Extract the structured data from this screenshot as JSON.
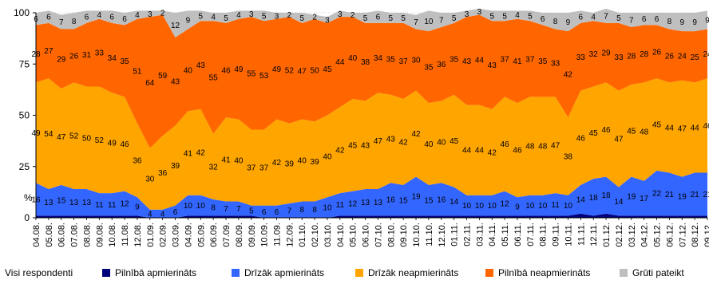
{
  "chart_data": {
    "type": "area",
    "stacked": true,
    "title": "",
    "xlabel": "",
    "ylabel": "%",
    "ylim": [
      0,
      100
    ],
    "yticks": [
      0,
      25,
      50,
      75,
      100
    ],
    "grid": true,
    "x": [
      "04.08.",
      "05.08.",
      "06.08.",
      "07.08.",
      "08.08.",
      "09.08.",
      "10.08.",
      "11.08.",
      "12.08.",
      "01.09.",
      "02.09.",
      "03.09.",
      "04.09.",
      "05.09.",
      "06.09.",
      "07.09.",
      "08.09.",
      "09.09.",
      "10.09.",
      "11.09.",
      "12.09.",
      "01.10.",
      "02.10.",
      "03.10.",
      "04.10.",
      "05.10.",
      "06.10.",
      "07.10.",
      "08.10.",
      "09.10.",
      "10.10.",
      "11.10.",
      "12.10.",
      "01.11.",
      "02.11.",
      "03.11.",
      "04.11.",
      "05.11.",
      "06.11.",
      "07.11.",
      "08.11.",
      "09.11.",
      "10.11.",
      "11.11.",
      "12.11.",
      "01.12.",
      "02.12.",
      "03.12.",
      "04.12.",
      "05.12.",
      "06.12.",
      "07.12.",
      "08.12.",
      "09.12."
    ],
    "series": [
      {
        "name": "Pilnībā apmierināts",
        "color": "#00007f",
        "values": [
          1,
          1,
          1,
          1,
          1,
          1,
          1,
          1,
          1,
          0,
          0,
          0,
          1,
          1,
          1,
          1,
          1,
          1,
          0,
          0,
          0,
          0,
          0,
          0,
          1,
          1,
          1,
          1,
          1,
          1,
          1,
          1,
          1,
          1,
          1,
          1,
          1,
          1,
          1,
          1,
          1,
          1,
          1,
          2,
          1,
          2,
          1,
          1,
          1,
          1,
          1,
          1,
          1,
          1
        ]
      },
      {
        "name": "Drīzāk apmierināts",
        "color": "#3366ff",
        "values": [
          16,
          13,
          15,
          13,
          13,
          11,
          11,
          12,
          9,
          4,
          4,
          6,
          10,
          10,
          8,
          7,
          7,
          5,
          6,
          6,
          7,
          8,
          8,
          10,
          11,
          12,
          13,
          13,
          16,
          15,
          19,
          15,
          16,
          14,
          10,
          10,
          10,
          12,
          9,
          10,
          10,
          11,
          10,
          14,
          18,
          18,
          14,
          19,
          17,
          22,
          21,
          19,
          21,
          21
        ]
      },
      {
        "name": "Drīzāk neapmierināts",
        "color": "#ffa500",
        "values": [
          49,
          54,
          47,
          52,
          50,
          52,
          49,
          46,
          36,
          30,
          36,
          39,
          41,
          42,
          32,
          41,
          40,
          37,
          37,
          42,
          39,
          40,
          39,
          40,
          42,
          45,
          43,
          47,
          43,
          42,
          42,
          40,
          40,
          45,
          44,
          44,
          42,
          46,
          46,
          48,
          48,
          47,
          38,
          46,
          45,
          46,
          47,
          45,
          48,
          45,
          44,
          47,
          44,
          46
        ]
      },
      {
        "name": "Pilnībā neapmierināts",
        "color": "#ff6600",
        "values": [
          28,
          27,
          29,
          26,
          31,
          33,
          34,
          35,
          51,
          64,
          59,
          43,
          40,
          43,
          55,
          46,
          49,
          55,
          53,
          49,
          52,
          47,
          50,
          45,
          44,
          40,
          38,
          34,
          35,
          37,
          30,
          35,
          36,
          35,
          43,
          44,
          43,
          37,
          41,
          37,
          35,
          33,
          42,
          33,
          32,
          29,
          33,
          28,
          28,
          26,
          26,
          24,
          25,
          24
        ]
      },
      {
        "name": "Grūti pateikt",
        "color": "#bfbfbf",
        "values": [
          6,
          6,
          7,
          8,
          6,
          4,
          6,
          6,
          4,
          3,
          2,
          12,
          9,
          5,
          4,
          5,
          4,
          3,
          5,
          3,
          2,
          5,
          2,
          3,
          3,
          2,
          5,
          6,
          5,
          5,
          7,
          10,
          7,
          5,
          3,
          3,
          5,
          5,
          4,
          5,
          6,
          8,
          9,
          6,
          4,
          7,
          5,
          7,
          6,
          6,
          8,
          9,
          9,
          9
        ]
      }
    ],
    "label_rows": [
      {
        "series": 1,
        "labels": [
          "16",
          "13",
          "15",
          "13",
          "13",
          "11",
          "11",
          "12",
          "9",
          "4",
          "4",
          "6",
          "10",
          "10",
          "8",
          "7",
          "7",
          "5",
          "6",
          "6",
          "7",
          "8",
          "8",
          "10",
          "11",
          "12",
          "13",
          "13",
          "16",
          "15",
          "19",
          "15",
          "16",
          "14",
          "10",
          "10",
          "10",
          "12",
          "9",
          "10",
          "10",
          "11",
          "10",
          "14",
          "18",
          "18",
          "14",
          "19",
          "17",
          "22",
          "21",
          "19",
          "21",
          "21"
        ]
      },
      {
        "series": 2,
        "labels": [
          "49",
          "54",
          "47",
          "52",
          "50",
          "52",
          "49",
          "46",
          "36",
          "30",
          "36",
          "39",
          "41",
          "42",
          "32",
          "41",
          "40",
          "37",
          "37",
          "42",
          "39",
          "40",
          "39",
          "40",
          "42",
          "45",
          "43",
          "47",
          "43",
          "42",
          "42",
          "40",
          "40",
          "45",
          "44",
          "44",
          "42",
          "46",
          "46",
          "48",
          "48",
          "47",
          "38",
          "46",
          "45",
          "46",
          "47",
          "45",
          "48",
          "45",
          "44",
          "47",
          "44",
          "46"
        ]
      },
      {
        "series": 3,
        "labels": [
          "28",
          "27",
          "29",
          "26",
          "31",
          "33",
          "34",
          "35",
          "51",
          "64",
          "59",
          "43",
          "40",
          "43",
          "55",
          "46",
          "49",
          "55",
          "53",
          "49",
          "52",
          "47",
          "50",
          "45",
          "44",
          "40",
          "38",
          "34",
          "35",
          "37",
          "30",
          "35",
          "36",
          "35",
          "43",
          "44",
          "43",
          "37",
          "41",
          "37",
          "35",
          "33",
          "42",
          "33",
          "32",
          "29",
          "33",
          "28",
          "28",
          "26",
          "26",
          "24",
          "25",
          "24"
        ]
      },
      {
        "series": 4,
        "labels": [
          "6",
          "6",
          "7",
          "8",
          "6",
          "4",
          "6",
          "6",
          "4",
          "3",
          "2",
          "12",
          "9",
          "5",
          "4",
          "5",
          "4",
          "3",
          "5",
          "3",
          "2",
          "5",
          "2",
          "3",
          "3",
          "2",
          "5",
          "6",
          "5",
          "5",
          "7",
          "10",
          "7",
          "5",
          "3",
          "3",
          "5",
          "5",
          "4",
          "5",
          "6",
          "8",
          "9",
          "6",
          "4",
          "7",
          "5",
          "7",
          "6",
          "6",
          "8",
          "9",
          "9",
          "9"
        ]
      }
    ]
  },
  "legend": {
    "lead": "Visi respondenti",
    "items": [
      {
        "label": "Pilnībā apmierināts",
        "color": "#00007f"
      },
      {
        "label": "Drīzāk apmierināts",
        "color": "#3366ff"
      },
      {
        "label": "Drīzāk neapmierināts",
        "color": "#ffa500"
      },
      {
        "label": "Pilnībā neapmierināts",
        "color": "#ff6600"
      },
      {
        "label": "Grūti pateikt",
        "color": "#bfbfbf"
      }
    ]
  }
}
